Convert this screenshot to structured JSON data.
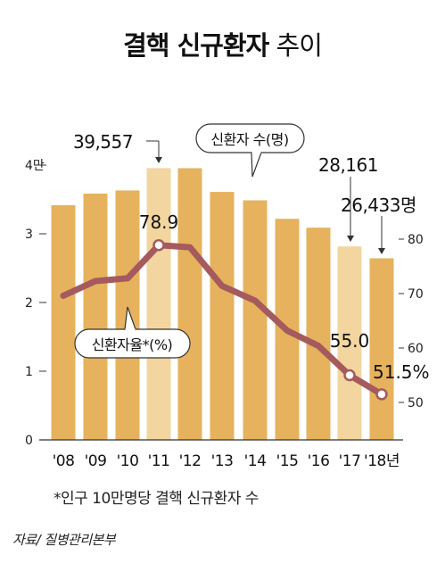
{
  "title_bold": "결핵 신규환자",
  "title_light": "추이",
  "footnote": "*인구 10만명당 결핵 신규환자 수",
  "source": "자료/ 질병관리본부",
  "chart_data": {
    "type": "bar",
    "categories": [
      "'08",
      "'09",
      "'10",
      "'11",
      "'12",
      "'13",
      "'14",
      "'15",
      "'16",
      "'17",
      "'18년"
    ],
    "series": [
      {
        "name": "신환자 수(명)",
        "type": "bar",
        "axis": "left",
        "values": [
          34157,
          35845,
          36305,
          39557,
          39545,
          36089,
          34869,
          32181,
          30892,
          28161,
          26433
        ]
      },
      {
        "name": "신환자율*(%)",
        "type": "line",
        "axis": "right",
        "values": [
          69.6,
          72.3,
          72.8,
          78.9,
          78.5,
          71.4,
          68.7,
          63.2,
          60.4,
          55.0,
          51.5
        ]
      }
    ],
    "left_axis": {
      "ticks": [
        "0",
        "1",
        "2",
        "3",
        "4만"
      ],
      "ylim": [
        0,
        40000
      ]
    },
    "right_axis": {
      "ticks": [
        "50",
        "60",
        "70",
        "80"
      ]
    },
    "annotations": {
      "bar_2011": "39,557",
      "bar_2017": "28,161",
      "bar_2018": "26,433명",
      "line_2011": "78.9",
      "line_2017": "55.0",
      "line_2018": "51.5%"
    },
    "bar_legend_label": "신환자 수(명)",
    "line_legend_label": "신환자율*(%)",
    "colors": {
      "bar_normal": "#e6b25e",
      "bar_highlight": "#f3d59f",
      "line": "#a55a5e",
      "marker_fill": "#ffffff",
      "axis": "#333333"
    }
  }
}
